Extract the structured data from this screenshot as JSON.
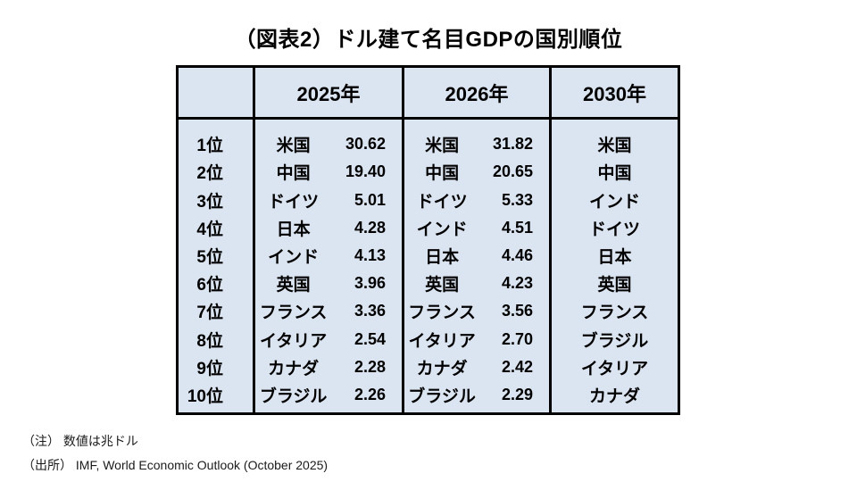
{
  "title": "（図表2）ドル建て名目GDPの国別順位",
  "notes": {
    "unit": "（注） 数値は兆ドル",
    "source": "（出所） IMF, World Economic Outlook (October 2025)"
  },
  "colors": {
    "cell_bg": "#dbe5f1",
    "border": "#000000",
    "text": "#000000"
  },
  "chart_data": {
    "type": "table",
    "title": "（図表2）ドル建て名目GDPの国別順位",
    "columns": [
      "2025年",
      "2026年",
      "2030年"
    ],
    "ranks": [
      "1位",
      "2位",
      "3位",
      "4位",
      "5位",
      "6位",
      "7位",
      "8位",
      "9位",
      "10位"
    ],
    "y2025": [
      {
        "country": "米国",
        "value": "30.62"
      },
      {
        "country": "中国",
        "value": "19.40"
      },
      {
        "country": "ドイツ",
        "value": "5.01"
      },
      {
        "country": "日本",
        "value": "4.28"
      },
      {
        "country": "インド",
        "value": "4.13"
      },
      {
        "country": "英国",
        "value": "3.96"
      },
      {
        "country": "フランス",
        "value": "3.36"
      },
      {
        "country": "イタリア",
        "value": "2.54"
      },
      {
        "country": "カナダ",
        "value": "2.28"
      },
      {
        "country": "ブラジル",
        "value": "2.26"
      }
    ],
    "y2026": [
      {
        "country": "米国",
        "value": "31.82"
      },
      {
        "country": "中国",
        "value": "20.65"
      },
      {
        "country": "ドイツ",
        "value": "5.33"
      },
      {
        "country": "インド",
        "value": "4.51"
      },
      {
        "country": "日本",
        "value": "4.46"
      },
      {
        "country": "英国",
        "value": "4.23"
      },
      {
        "country": "フランス",
        "value": "3.56"
      },
      {
        "country": "イタリア",
        "value": "2.70"
      },
      {
        "country": "カナダ",
        "value": "2.42"
      },
      {
        "country": "ブラジル",
        "value": "2.29"
      }
    ],
    "y2030": [
      "米国",
      "中国",
      "インド",
      "ドイツ",
      "日本",
      "英国",
      "フランス",
      "ブラジル",
      "イタリア",
      "カナダ"
    ]
  }
}
